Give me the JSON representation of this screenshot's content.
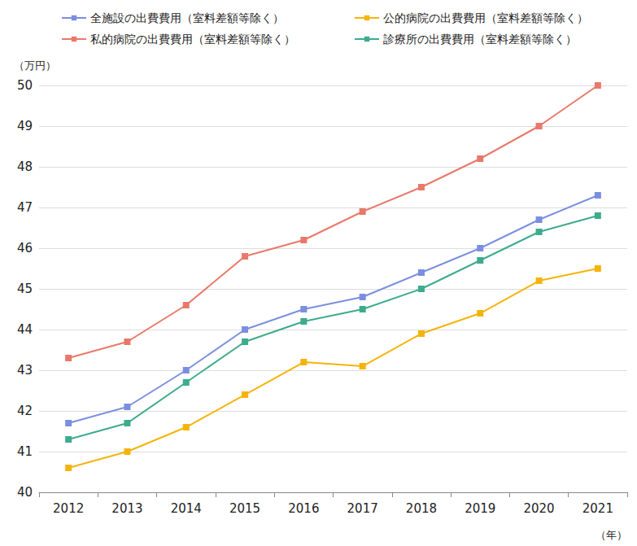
{
  "chart_data": {
    "type": "line",
    "y_label": "（万円）",
    "x_label": "（年）",
    "categories": [
      "2012",
      "2013",
      "2014",
      "2015",
      "2016",
      "2017",
      "2018",
      "2019",
      "2020",
      "2021"
    ],
    "series": [
      {
        "name": "全施設の出費費用（室料差額等除く）",
        "color": "#7b8fe0",
        "values": [
          41.7,
          42.1,
          43.0,
          44.0,
          44.5,
          44.8,
          45.4,
          46.0,
          46.7,
          47.3
        ]
      },
      {
        "name": "公的病院の出費費用（室料差額等除く）",
        "color": "#f5b40a",
        "values": [
          40.6,
          41.0,
          41.6,
          42.4,
          43.2,
          43.1,
          43.9,
          44.4,
          45.2,
          45.5
        ]
      },
      {
        "name": "私的病院の出費費用（室料差額等除く）",
        "color": "#e8796a",
        "values": [
          43.3,
          43.7,
          44.6,
          45.8,
          46.2,
          46.9,
          47.5,
          48.2,
          49.0,
          50.0
        ]
      },
      {
        "name": "診療所の出費費用（室料差額等除く）",
        "color": "#3dab8e",
        "values": [
          41.3,
          41.7,
          42.7,
          43.7,
          44.2,
          44.5,
          45.0,
          45.7,
          46.4,
          46.8
        ]
      }
    ],
    "ylim": [
      40,
      50
    ],
    "yticks": [
      40,
      41,
      42,
      43,
      44,
      45,
      46,
      47,
      48,
      49,
      50
    ],
    "grid": true,
    "legend": "top",
    "marker": "square"
  }
}
